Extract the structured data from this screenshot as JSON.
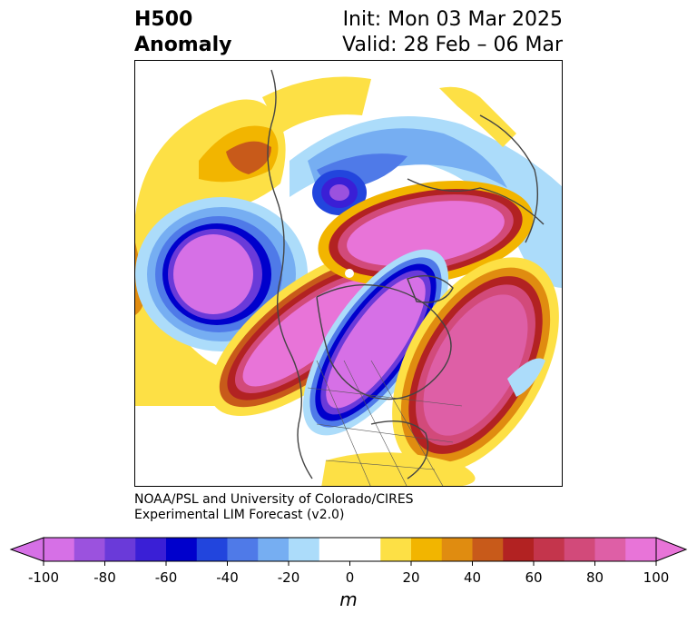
{
  "title": {
    "left_line1": "H500",
    "left_line2": "Anomaly",
    "right_line1": "Init: Mon 03 Mar 2025",
    "right_line2": "Valid: 28 Feb – 06 Mar"
  },
  "credit": {
    "line1": "NOAA/PSL and University of Colorado/CIRES",
    "line2": "Experimental LIM Forecast (v2.0)"
  },
  "colorbar": {
    "unit": "m",
    "ticks": [
      "-100",
      "-80",
      "-60",
      "-40",
      "-20",
      "0",
      "20",
      "40",
      "60",
      "80",
      "100"
    ],
    "colors": [
      "#d670e6",
      "#9b52de",
      "#6a3ad9",
      "#3a1fd6",
      "#0000cc",
      "#2245dd",
      "#4f7ae8",
      "#76aef2",
      "#acdcfa",
      "#ffffff",
      "#ffffff",
      "#fde045",
      "#f2b500",
      "#e08c10",
      "#c85a1a",
      "#b22222",
      "#c4354c",
      "#d24a7a",
      "#de5fa6",
      "#e874d8"
    ],
    "under_color": "#d670e6",
    "over_color": "#e874d8"
  },
  "map": {
    "projection": "north-polar-stereographic",
    "anomaly_centers": [
      {
        "region": "North Pacific",
        "sign": "negative"
      },
      {
        "region": "western North America",
        "sign": "positive"
      },
      {
        "region": "Canada / Hudson Bay",
        "sign": "negative"
      },
      {
        "region": "North Atlantic",
        "sign": "positive"
      },
      {
        "region": "Arctic / Siberia",
        "sign": "positive"
      },
      {
        "region": "Europe",
        "sign": "negative"
      }
    ]
  }
}
